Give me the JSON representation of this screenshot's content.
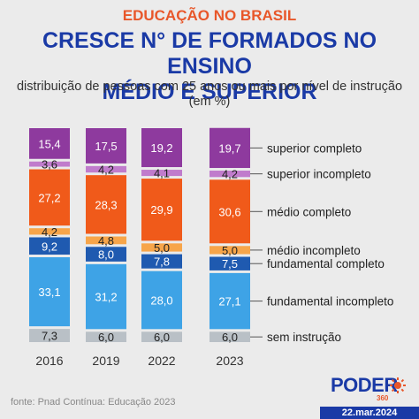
{
  "kicker": "EDUCAÇÃO NO BRASIL",
  "title_line1": "CRESCE N° DE FORMADOS NO ENSINO",
  "title_line2": "MÉDIO E SUPERIOR",
  "subtitle_line1": "distribuição de pessoas com 25 anos ou mais por nível de instrução",
  "subtitle_line2": "(em %)",
  "source": "fonte: Pnad Contínua: Educação 2023",
  "brand": {
    "name": "PODER",
    "sub": "360",
    "icon": "sun-icon"
  },
  "date": "22.mar.2024",
  "colors": {
    "superior_completo": "#8e3a9e",
    "superior_incompleto": "#c07ccc",
    "medio_completo": "#f05a1a",
    "medio_incompleto": "#f7a54a",
    "fundamental_completo": "#1f5ab0",
    "fundamental_incompleto": "#3ea3e6",
    "sem_instrucao": "#b9c0c6",
    "brand_blue": "#1a3aa6",
    "brand_orange": "#e8572a"
  },
  "chart_data": {
    "type": "bar",
    "stacked": true,
    "categories": [
      "2016",
      "2019",
      "2022",
      "2023"
    ],
    "series": [
      {
        "name": "sem instrução",
        "color_key": "sem_instrucao",
        "values": [
          7.3,
          6.0,
          6.0,
          6.0
        ]
      },
      {
        "name": "fundamental incompleto",
        "color_key": "fundamental_incompleto",
        "values": [
          33.1,
          31.2,
          28.0,
          27.1
        ]
      },
      {
        "name": "fundamental completo",
        "color_key": "fundamental_completo",
        "values": [
          9.2,
          8.0,
          7.8,
          7.5
        ]
      },
      {
        "name": "médio incompleto",
        "color_key": "medio_incompleto",
        "values": [
          4.2,
          4.8,
          5.0,
          5.0
        ]
      },
      {
        "name": "médio completo",
        "color_key": "medio_completo",
        "values": [
          27.2,
          28.3,
          29.9,
          30.6
        ]
      },
      {
        "name": "superior incompleto",
        "color_key": "superior_incompleto",
        "values": [
          3.6,
          4.2,
          4.1,
          4.2
        ]
      },
      {
        "name": "superior completo",
        "color_key": "superior_completo",
        "values": [
          15.4,
          17.5,
          19.2,
          19.7
        ]
      }
    ],
    "ylim": [
      0,
      100
    ],
    "legend": "right, labels beside last bar",
    "grid": false
  }
}
